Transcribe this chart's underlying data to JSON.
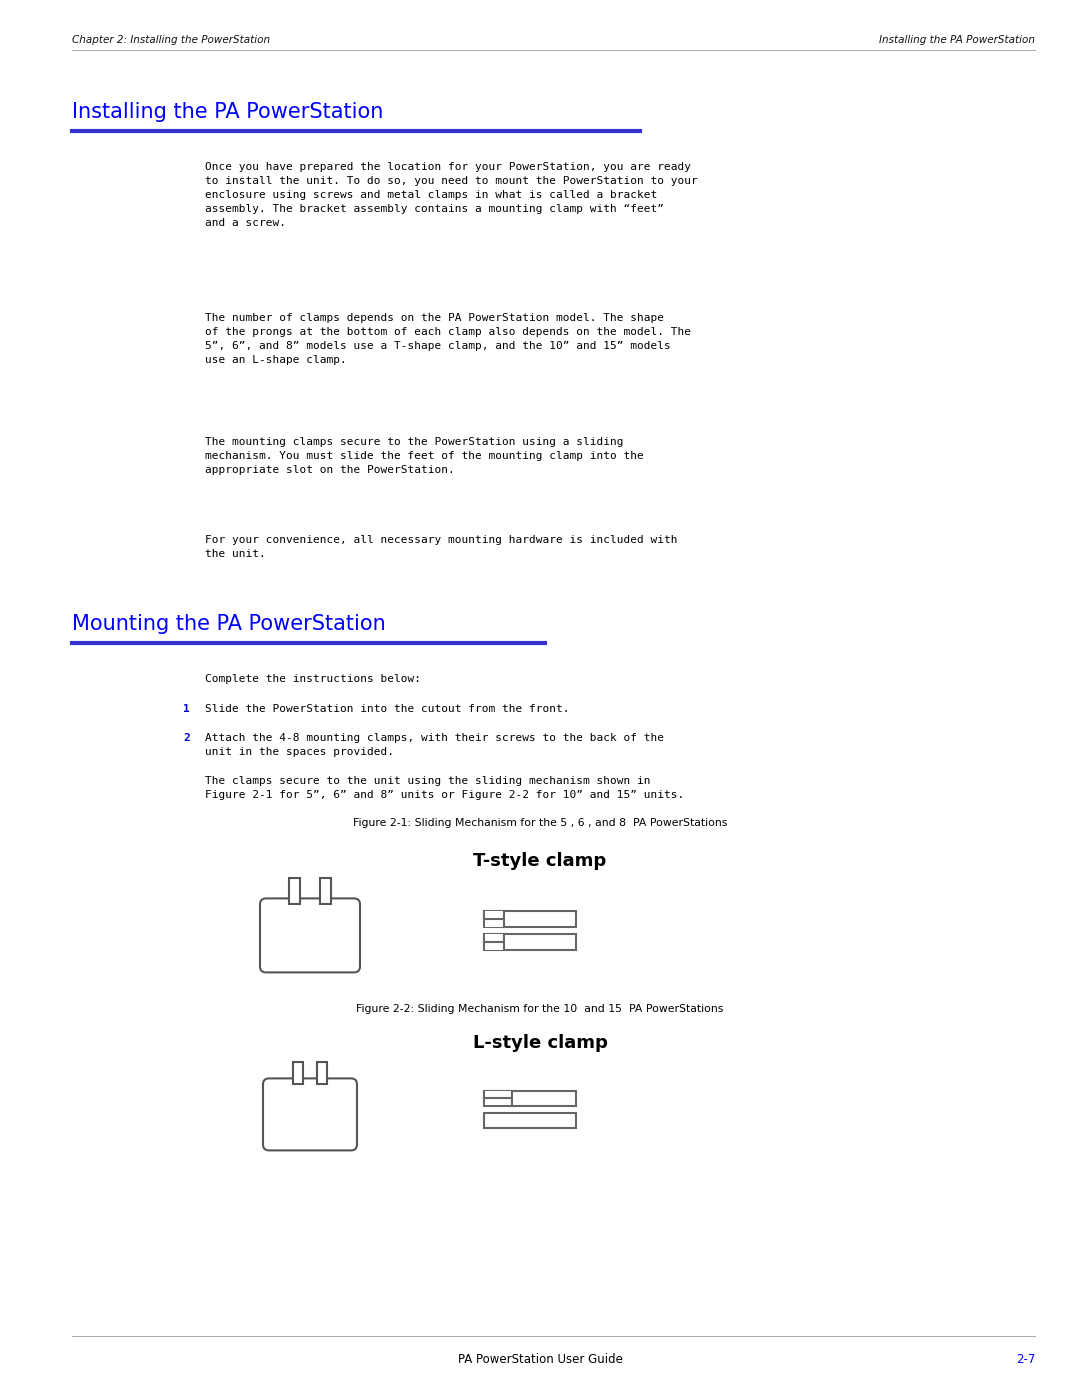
{
  "page_width": 10.8,
  "page_height": 13.97,
  "bg_color": "#ffffff",
  "header_left": "Chapter 2: Installing the PowerStation",
  "header_right": "Installing the PA PowerStation",
  "section1_title": "Installing the PA PowerStation",
  "section1_title_color": "#0000ff",
  "section1_underline_color": "#3333cc",
  "section1_para1": "Once you have prepared the location for your PowerStation, you are ready\nto install the unit. To do so, you need to mount the PowerStation to your\nenclosure using screws and metal clamps in what is called a bracket\nassembly. The bracket assembly contains a mounting clamp with “feet”\nand a screw.",
  "section1_para2": "The number of clamps depends on the PA PowerStation model. The shape\nof the prongs at the bottom of each clamp also depends on the model. The\n5”, 6”, and 8” models use a T-shape clamp, and the 10” and 15” models\nuse an L-shape clamp.",
  "section1_para3": "The mounting clamps secure to the PowerStation using a sliding\nmechanism. You must slide the feet of the mounting clamp into the\nappropriate slot on the PowerStation.",
  "section1_para4": "For your convenience, all necessary mounting hardware is included with\nthe unit.",
  "section2_title": "Mounting the PA PowerStation",
  "section2_title_color": "#0000ff",
  "section2_intro": "Complete the instructions below:",
  "step1_num": "1",
  "step1_text": "Slide the PowerStation into the cutout from the front.",
  "step2_num": "2",
  "step2_text": "Attach the 4-8 mounting clamps, with their screws to the back of the\nunit in the spaces provided.",
  "step2_sub": "The clamps secure to the unit using the sliding mechanism shown in\nFigure 2-1 for 5”, 6” and 8” units or Figure 2-2 for 10” and 15” units.",
  "fig1_caption": "Figure 2-1: Sliding Mechanism for the 5 , 6 , and 8  PA PowerStations",
  "fig1_title": "T-style clamp",
  "fig2_caption": "Figure 2-2: Sliding Mechanism for the 10  and 15  PA PowerStations",
  "fig2_title": "L-style clamp",
  "footer_left": "PA PowerStation User Guide",
  "footer_right": "2-7",
  "footer_right_color": "#0000ff",
  "text_color": "#000000"
}
